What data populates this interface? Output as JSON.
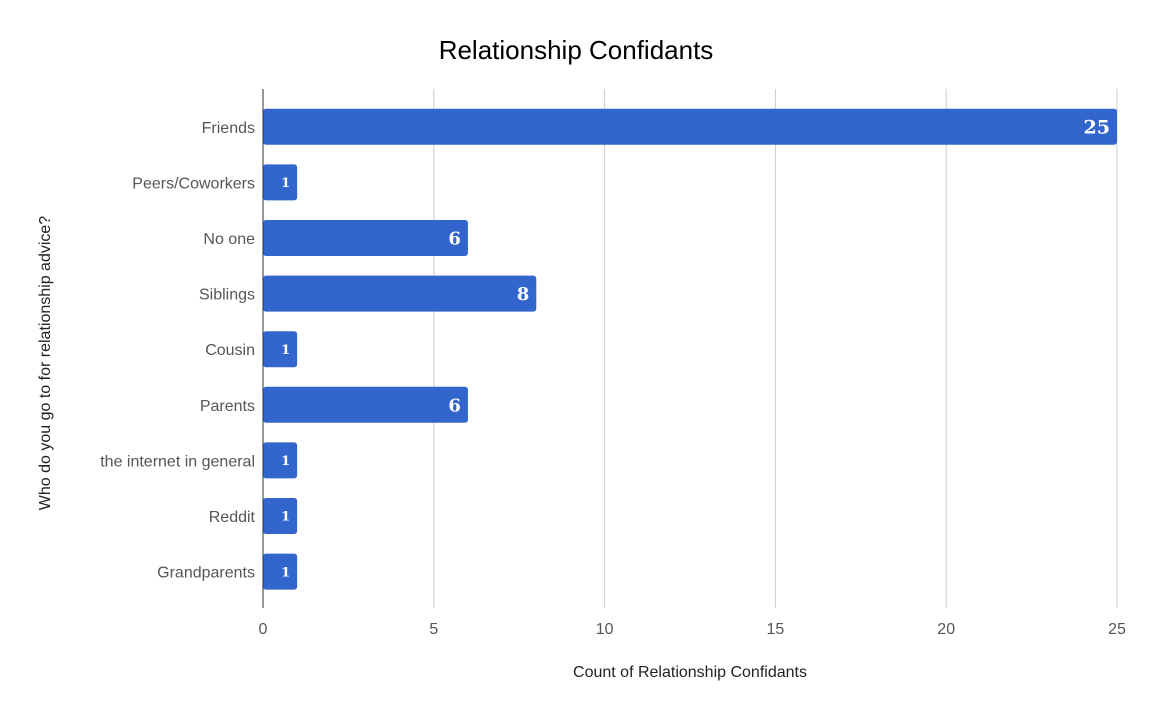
{
  "chart_data": {
    "type": "bar",
    "orientation": "horizontal",
    "title": "Relationship Confidants",
    "xlabel": "Count of Relationship Confidants",
    "ylabel": "Who do you go to for relationship advice?",
    "categories": [
      "Friends",
      "Peers/Coworkers",
      "No one",
      "Siblings",
      "Cousin",
      "Parents",
      "the internet in general",
      "Reddit",
      "Grandparents"
    ],
    "values": [
      25,
      1,
      6,
      8,
      1,
      6,
      1,
      1,
      1
    ],
    "data_labels": [
      "25",
      "1",
      "6",
      "8",
      "1",
      "6",
      "1",
      "1",
      "1"
    ],
    "xlim": [
      0,
      25
    ],
    "x_ticks": [
      "0",
      "5",
      "10",
      "15",
      "20",
      "25"
    ],
    "grid": true,
    "legend": "none",
    "colors": {
      "bar": "#3366cc",
      "grid": "#cccccc",
      "axis": "#333333",
      "data_label": "#ffffff"
    }
  }
}
